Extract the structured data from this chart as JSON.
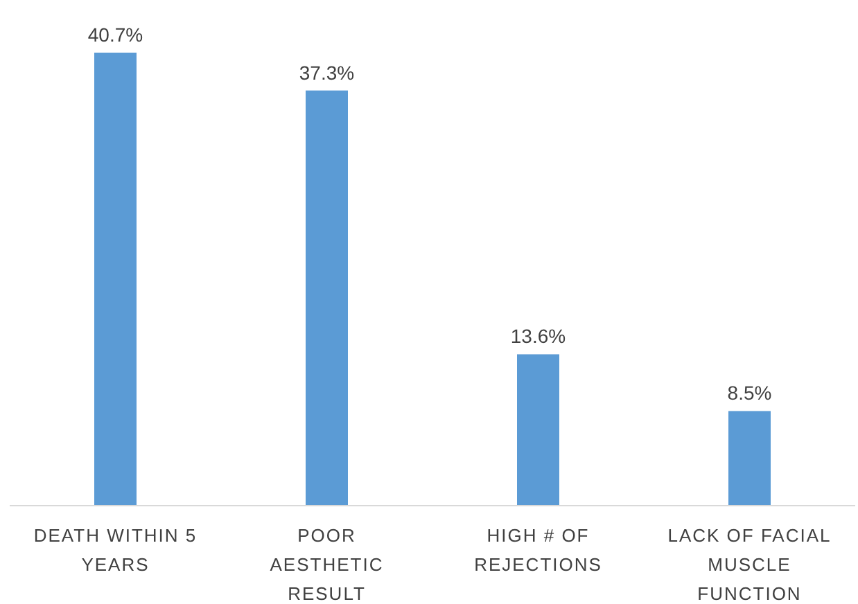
{
  "chart_data": {
    "type": "bar",
    "categories": [
      "DEATH WITHIN 5 YEARS",
      "POOR AESTHETIC RESULT",
      "HIGH # OF REJECTIONS",
      "LACK OF FACIAL MUSCLE FUNCTION"
    ],
    "values": [
      40.7,
      37.3,
      13.6,
      8.5
    ],
    "value_labels": [
      "40.7%",
      "37.3%",
      "13.6%",
      "8.5%"
    ],
    "color": "#5b9bd5"
  }
}
